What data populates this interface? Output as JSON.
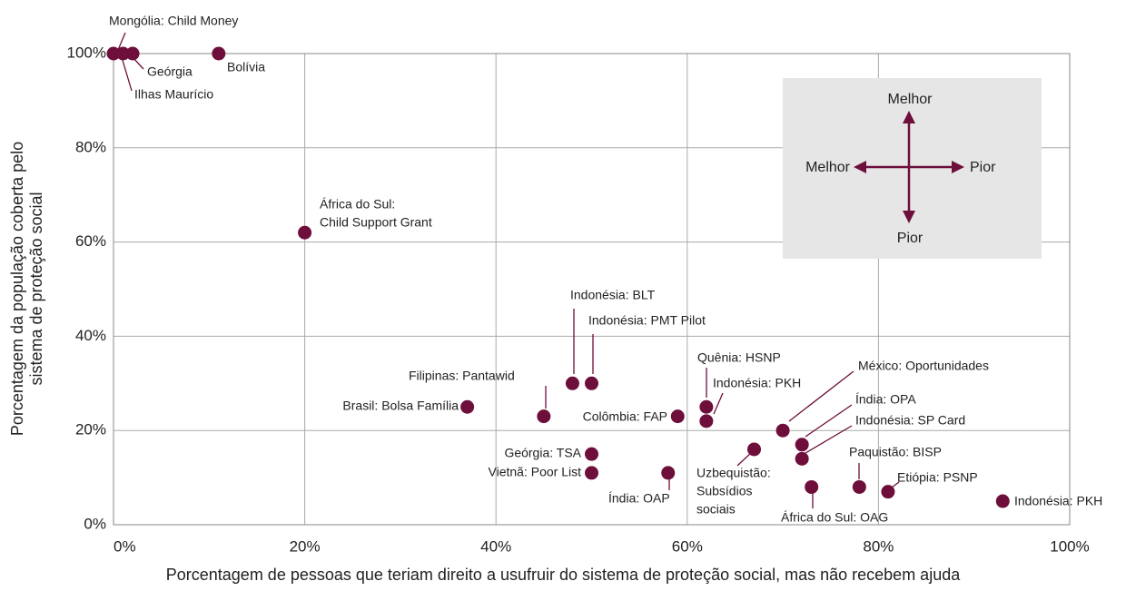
{
  "chart_data": {
    "type": "scatter",
    "xlabel": "Porcentagem de pessoas que teriam direito a usufruir do sistema de proteção social, mas não recebem ajuda",
    "ylabel": [
      "Porcentagem da população coberta pelo",
      "sistema de proteção social"
    ],
    "color": "#6d0e3b",
    "grid": true,
    "xlim": [
      0,
      100
    ],
    "ylim": [
      0,
      100
    ],
    "xticks": [
      {
        "value": 0,
        "label": "0%"
      },
      {
        "value": 20,
        "label": "20%"
      },
      {
        "value": 40,
        "label": "40%"
      },
      {
        "value": 60,
        "label": "60%"
      },
      {
        "value": 80,
        "label": "80%"
      },
      {
        "value": 100,
        "label": "100%"
      }
    ],
    "yticks": [
      {
        "value": 0,
        "label": "0%"
      },
      {
        "value": 20,
        "label": "20%"
      },
      {
        "value": 40,
        "label": "40%"
      },
      {
        "value": 60,
        "label": "60%"
      },
      {
        "value": 80,
        "label": "80%"
      },
      {
        "value": 100,
        "label": "100%"
      }
    ],
    "labels": [
      [
        "Mongólia: Child Money"
      ],
      [
        "Ilhas Maurício"
      ],
      [
        "Geórgia"
      ],
      [
        "Bolívia"
      ],
      [
        "África do Sul:",
        "Child Support Grant"
      ],
      [
        "Indonésia: BLT"
      ],
      [
        "Indonésia: PMT Pilot"
      ],
      [
        "Filipinas: Pantawid"
      ],
      [
        "Brasil: Bolsa Família"
      ],
      [
        "Colômbia: FAP"
      ],
      [
        "Quênia: HSNP"
      ],
      [
        "Indonésia: PKH"
      ],
      [
        "México: Oportunidades"
      ],
      [
        "Índia: OPA"
      ],
      [
        "Indonésia: SP Card"
      ],
      [
        "Uzbequistão:",
        "Subsídios",
        "sociais"
      ],
      [
        "Geórgia: TSA"
      ],
      [
        "Vietnã: Poor List"
      ],
      [
        "Índia: OAP"
      ],
      [
        "África do Sul: OAG"
      ],
      [
        "Paquistão: BISP"
      ],
      [
        "Etiópia: PSNP"
      ],
      [
        "Indonésia: PKH"
      ]
    ],
    "x": [
      0,
      1,
      2,
      11,
      20,
      48,
      50,
      45,
      37,
      59,
      62,
      62,
      70,
      72,
      72,
      67,
      50,
      50,
      58,
      73,
      78,
      81,
      93
    ],
    "y": [
      100,
      100,
      100,
      100,
      62,
      30,
      30,
      23,
      25,
      23,
      25,
      22,
      20,
      17,
      14,
      16,
      15,
      11,
      11,
      8,
      8,
      7,
      5
    ],
    "legend_box": {
      "up": "Melhor",
      "left": "Melhor",
      "right": "Pior",
      "down": "Pior"
    }
  }
}
